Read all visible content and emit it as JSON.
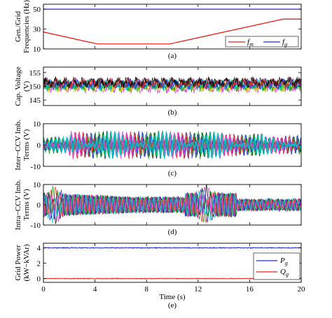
{
  "figure": {
    "x_label": "Time (s)",
    "x_ticks": [
      0,
      4,
      8,
      12,
      16,
      20
    ]
  },
  "colors": {
    "red": "#e8231c",
    "blue": "#1f2bd8",
    "green": "#00a000",
    "cyan": "#00c8c8",
    "magenta": "#e020e0",
    "yellow": "#d8d800",
    "black": "#000000"
  },
  "chart_data": [
    {
      "type": "line",
      "caption": "(a)",
      "ylabel": [
        "Gen./Grid",
        "Frequencies (Hz)"
      ],
      "xlim": [
        0,
        20
      ],
      "ylim": [
        10,
        55
      ],
      "y_ticks": [
        10,
        30,
        50
      ],
      "legend": {
        "placement": "bottom-right",
        "entries": [
          "f_m",
          "f_g"
        ]
      },
      "series": [
        {
          "name": "f_m",
          "color": "red",
          "x": [
            0,
            4.2,
            9.8,
            18.6,
            20
          ],
          "y": [
            27,
            15,
            15,
            40,
            40
          ]
        },
        {
          "name": "f_g",
          "color": "blue",
          "x": [
            0,
            20
          ],
          "y": [
            50,
            50
          ]
        }
      ]
    },
    {
      "type": "line",
      "caption": "(b)",
      "ylabel": [
        "Cap. Voltage",
        "(V)"
      ],
      "xlim": [
        0,
        20
      ],
      "ylim": [
        143,
        157
      ],
      "y_ticks": [
        145,
        150,
        155
      ],
      "description_band": {
        "center": 150.5,
        "amplitude": 3
      }
    },
    {
      "type": "line",
      "caption": "(c)",
      "ylabel": [
        "Inter−CCV Imb.",
        "Terms (V)"
      ],
      "xlim": [
        0,
        20
      ],
      "ylim": [
        -10,
        10
      ],
      "y_ticks": [
        -10,
        0,
        10
      ]
    },
    {
      "type": "line",
      "caption": "(d)",
      "ylabel": [
        "Intra−CCV Imb.",
        "Terms (V)"
      ],
      "xlim": [
        0,
        20
      ],
      "ylim": [
        -10,
        10
      ],
      "y_ticks": [
        -10,
        0,
        10
      ]
    },
    {
      "type": "line",
      "caption": "(e)",
      "ylabel": [
        "Grid Power",
        "(kW−kVAr)"
      ],
      "xlim": [
        0,
        20
      ],
      "ylim": [
        -0.5,
        4.6
      ],
      "y_ticks": [
        0,
        2,
        4
      ],
      "legend": {
        "placement": "right",
        "entries": [
          "P_g",
          "Q_g"
        ]
      },
      "series": [
        {
          "name": "P_g",
          "color": "blue",
          "x": [
            0,
            20
          ],
          "y": [
            4,
            4
          ]
        },
        {
          "name": "Q_g",
          "color": "red",
          "x": [
            0,
            20
          ],
          "y": [
            0,
            0
          ]
        }
      ]
    }
  ]
}
